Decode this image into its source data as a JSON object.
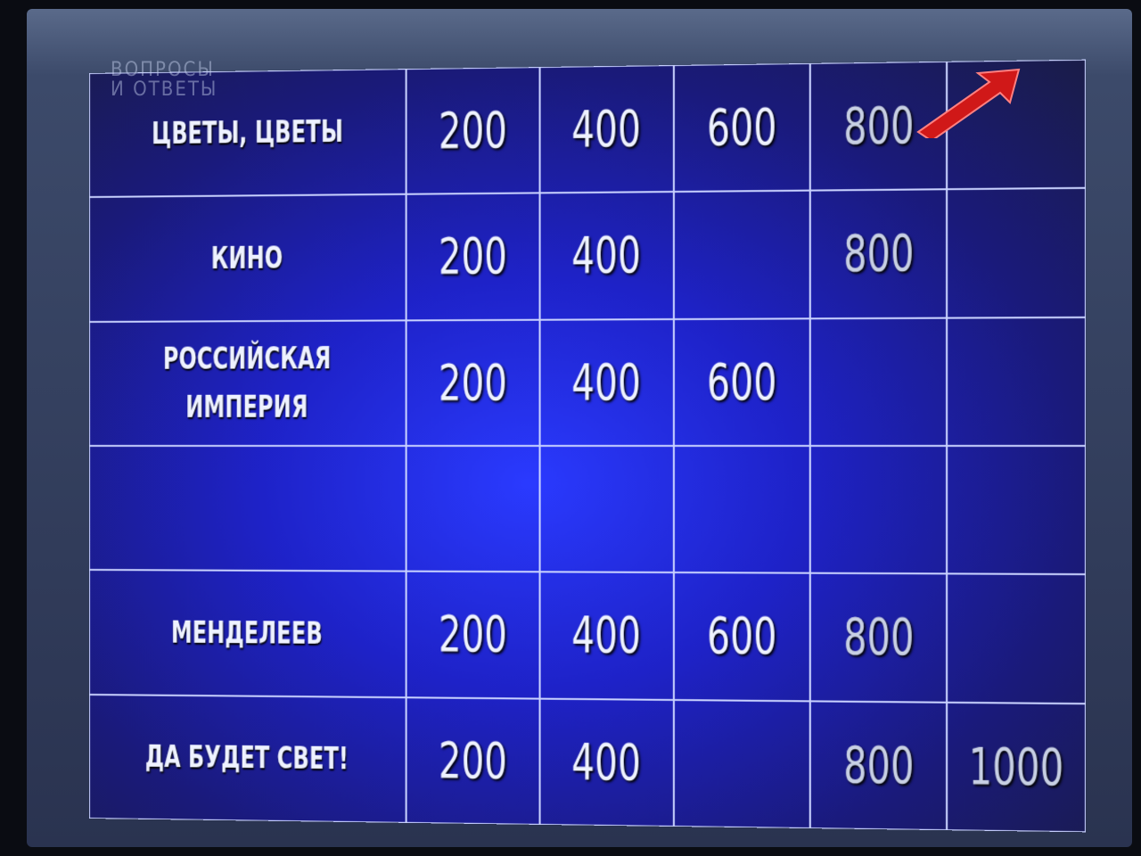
{
  "logo": {
    "line1": "ВОПРОСЫ",
    "line2": "И ОТВЕТЫ"
  },
  "colors": {
    "board": "#1e22c8",
    "grid_lines": "#c9d2ff",
    "text": "#eef2ff",
    "arrow": "#d01818"
  },
  "cursor_icon": "red-arrow-pointer",
  "rows": [
    {
      "category": "ЦВЕТЫ, ЦВЕТЫ",
      "values": [
        "200",
        "400",
        "600",
        "800",
        ""
      ]
    },
    {
      "category": "КИНО",
      "values": [
        "200",
        "400",
        "",
        "800",
        ""
      ]
    },
    {
      "category": "РОССИЙСКАЯ ИМПЕРИЯ",
      "values": [
        "200",
        "400",
        "600",
        "",
        ""
      ]
    },
    {
      "category": "",
      "values": [
        "",
        "",
        "",
        "",
        ""
      ]
    },
    {
      "category": "МЕНДЕЛЕЕВ",
      "values": [
        "200",
        "400",
        "600",
        "800",
        ""
      ]
    },
    {
      "category": "ДА БУДЕТ СВЕТ!",
      "values": [
        "200",
        "400",
        "",
        "800",
        "1000"
      ]
    }
  ]
}
